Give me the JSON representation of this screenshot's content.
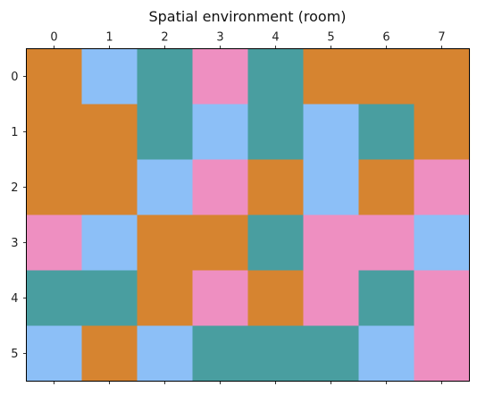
{
  "chart_data": {
    "type": "heatmap",
    "title": "Spatial environment (room)",
    "x_ticks": [
      "0",
      "1",
      "2",
      "3",
      "4",
      "5",
      "6",
      "7"
    ],
    "y_ticks": [
      "0",
      "1",
      "2",
      "3",
      "4",
      "5"
    ],
    "x_axis_position": "top",
    "grid": false,
    "legend": "none",
    "color_key": {
      "orange": "#d68430",
      "blue": "#8cbff7",
      "teal": "#499ea0",
      "pink": "#ee8fc1"
    },
    "cells": [
      [
        "orange",
        "blue",
        "teal",
        "pink",
        "teal",
        "orange",
        "orange",
        "orange"
      ],
      [
        "orange",
        "orange",
        "teal",
        "blue",
        "teal",
        "blue",
        "teal",
        "orange"
      ],
      [
        "orange",
        "orange",
        "blue",
        "pink",
        "orange",
        "blue",
        "orange",
        "pink"
      ],
      [
        "pink",
        "blue",
        "orange",
        "orange",
        "teal",
        "pink",
        "pink",
        "blue"
      ],
      [
        "teal",
        "teal",
        "orange",
        "pink",
        "orange",
        "pink",
        "teal",
        "pink"
      ],
      [
        "blue",
        "orange",
        "blue",
        "teal",
        "teal",
        "teal",
        "blue",
        "pink"
      ]
    ]
  }
}
